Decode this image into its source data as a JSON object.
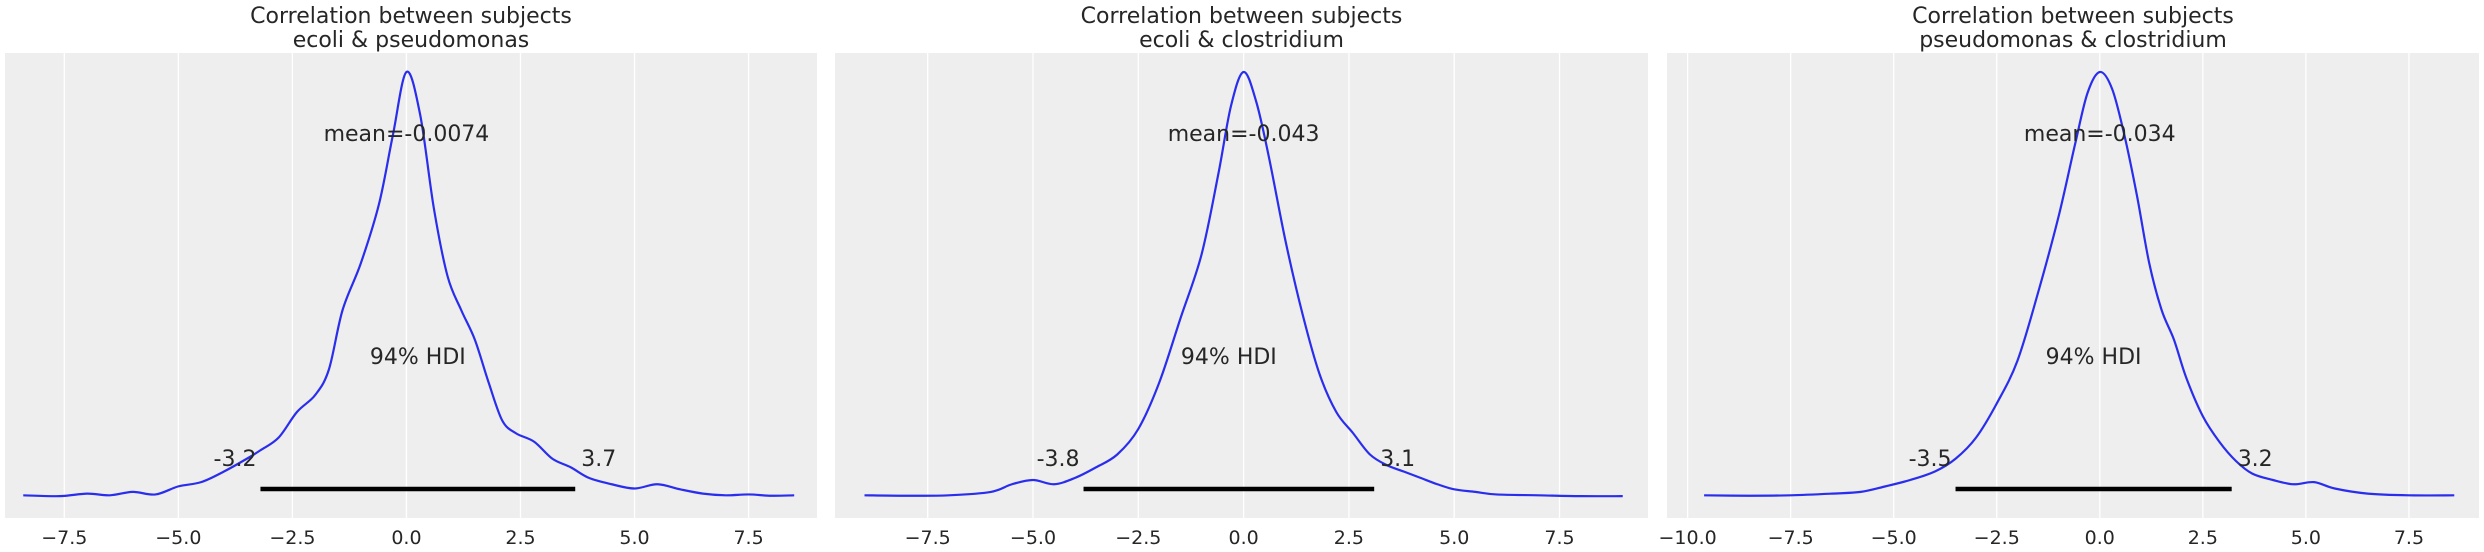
{
  "chart_data": [
    {
      "type": "area",
      "title": "Correlation between subjects\necoli & pseudomonas",
      "mean_label": "mean=-0.0074",
      "hdi_label": "94% HDI",
      "hdi": [
        -3.2,
        3.7
      ],
      "hdi_labels": [
        "-3.2",
        "3.7"
      ],
      "xlim": [
        -8.8,
        9.0
      ],
      "xticks": [
        -7.5,
        -5.0,
        -2.5,
        0.0,
        2.5,
        5.0,
        7.5
      ],
      "xtick_labels": [
        "−7.5",
        "−5.0",
        "−2.5",
        "0.0",
        "2.5",
        "5.0",
        "7.5"
      ],
      "density": {
        "x": [
          -8.4,
          -7.6,
          -7.0,
          -6.5,
          -6.0,
          -5.5,
          -5.0,
          -4.5,
          -4.0,
          -3.5,
          -3.2,
          -2.8,
          -2.4,
          -2.0,
          -1.7,
          -1.4,
          -1.0,
          -0.6,
          -0.3,
          0.0,
          0.3,
          0.6,
          0.9,
          1.2,
          1.5,
          1.8,
          2.1,
          2.4,
          2.8,
          3.2,
          3.6,
          4.0,
          4.5,
          5.0,
          5.5,
          6.0,
          6.5,
          7.0,
          7.5,
          8.0,
          8.5
        ],
        "y": [
          0.004,
          0.002,
          0.008,
          0.004,
          0.012,
          0.006,
          0.025,
          0.035,
          0.06,
          0.09,
          0.11,
          0.14,
          0.2,
          0.24,
          0.3,
          0.44,
          0.55,
          0.69,
          0.85,
          1.0,
          0.9,
          0.68,
          0.52,
          0.44,
          0.37,
          0.27,
          0.18,
          0.15,
          0.13,
          0.09,
          0.07,
          0.045,
          0.03,
          0.02,
          0.03,
          0.018,
          0.008,
          0.004,
          0.006,
          0.003,
          0.004
        ]
      }
    },
    {
      "type": "area",
      "title": "Correlation between subjects\necoli & clostridium",
      "mean_label": "mean=-0.043",
      "hdi_label": "94% HDI",
      "hdi": [
        -3.8,
        3.1
      ],
      "hdi_labels": [
        "-3.8",
        "3.1"
      ],
      "xlim": [
        -9.7,
        9.6
      ],
      "xticks": [
        -7.5,
        -5.0,
        -2.5,
        0.0,
        2.5,
        5.0,
        7.5
      ],
      "xtick_labels": [
        "−7.5",
        "−5.0",
        "−2.5",
        "0.0",
        "2.5",
        "5.0",
        "7.5"
      ],
      "density": {
        "x": [
          -9.0,
          -8.0,
          -7.0,
          -6.0,
          -5.5,
          -5.0,
          -4.5,
          -4.0,
          -3.5,
          -3.0,
          -2.5,
          -2.0,
          -1.5,
          -1.0,
          -0.6,
          -0.3,
          0.0,
          0.3,
          0.6,
          1.0,
          1.4,
          1.8,
          2.2,
          2.6,
          3.0,
          3.4,
          3.8,
          4.2,
          4.6,
          5.0,
          5.5,
          6.0,
          7.0,
          8.0,
          9.0
        ],
        "y": [
          0.004,
          0.003,
          0.004,
          0.012,
          0.03,
          0.04,
          0.03,
          0.045,
          0.07,
          0.1,
          0.16,
          0.27,
          0.42,
          0.57,
          0.76,
          0.92,
          1.0,
          0.93,
          0.8,
          0.6,
          0.43,
          0.29,
          0.2,
          0.15,
          0.1,
          0.075,
          0.06,
          0.045,
          0.03,
          0.018,
          0.012,
          0.006,
          0.004,
          0.002,
          0.002
        ]
      }
    },
    {
      "type": "area",
      "title": "Correlation between subjects\npseudomonas & clostridium",
      "mean_label": "mean=-0.034",
      "hdi_label": "94% HDI",
      "hdi": [
        -3.5,
        3.2
      ],
      "hdi_labels": [
        "-3.5",
        "3.2"
      ],
      "xlim": [
        -10.5,
        9.2
      ],
      "xticks": [
        -10.0,
        -7.5,
        -5.0,
        -2.5,
        0.0,
        2.5,
        5.0,
        7.5
      ],
      "xtick_labels": [
        "−10.0",
        "−7.5",
        "−5.0",
        "−2.5",
        "0.0",
        "2.5",
        "5.0",
        "7.5"
      ],
      "density": {
        "x": [
          -9.6,
          -8.5,
          -7.5,
          -6.5,
          -5.8,
          -5.2,
          -4.6,
          -4.0,
          -3.5,
          -3.0,
          -2.5,
          -2.0,
          -1.5,
          -1.0,
          -0.6,
          -0.3,
          0.0,
          0.3,
          0.6,
          0.9,
          1.2,
          1.5,
          1.8,
          2.1,
          2.5,
          2.9,
          3.3,
          3.7,
          4.2,
          4.7,
          5.2,
          5.7,
          6.5,
          7.5,
          8.6
        ],
        "y": [
          0.004,
          0.003,
          0.004,
          0.008,
          0.012,
          0.025,
          0.04,
          0.06,
          0.09,
          0.14,
          0.22,
          0.32,
          0.48,
          0.66,
          0.83,
          0.95,
          1.0,
          0.96,
          0.85,
          0.71,
          0.55,
          0.44,
          0.37,
          0.28,
          0.19,
          0.13,
          0.085,
          0.055,
          0.04,
          0.03,
          0.035,
          0.02,
          0.008,
          0.004,
          0.004
        ]
      }
    }
  ],
  "colors": {
    "axes_background": "#eeeeee",
    "grid": "#ffffff",
    "curve": "#2a2eec",
    "hdi_bar": "#000000",
    "text": "#262626"
  }
}
